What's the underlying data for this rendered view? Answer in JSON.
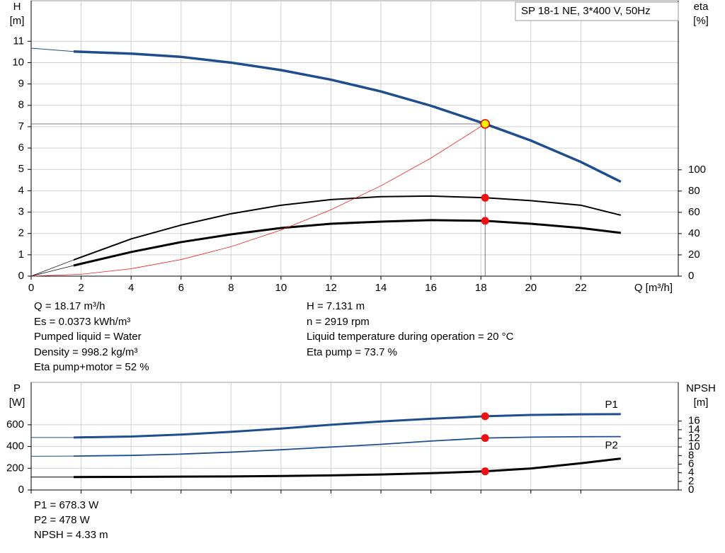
{
  "chart_data": [
    {
      "type": "line",
      "annotation": "SP 18-1 NE, 3*400 V, 50Hz",
      "xlabel": "Q [m³/h]",
      "ylabel": "H",
      "yunit": "[m]",
      "y2label": "eta",
      "y2unit": "[%]",
      "xlim": [
        0,
        25.9
      ],
      "xticks": [
        0,
        2,
        4,
        6,
        8,
        10,
        12,
        14,
        16,
        18,
        20,
        22
      ],
      "show_xtick_labels": true,
      "ylim": [
        0,
        12.9
      ],
      "yticks": [
        0,
        1,
        2,
        3,
        4,
        5,
        6,
        7,
        8,
        9,
        10,
        11
      ],
      "y2lim": [
        0,
        259
      ],
      "y2ticks": [
        0,
        20,
        40,
        60,
        80,
        100
      ],
      "grid": true,
      "series": [
        {
          "color": "#1f4e8c",
          "width": 1,
          "x": [
            0,
            1.7
          ],
          "values": [
            10.68,
            10.52
          ]
        },
        {
          "color": "#1f4e8c",
          "width": 3.5,
          "x": [
            1.7,
            4,
            6,
            8,
            10,
            12,
            14,
            16,
            18.17,
            20,
            22,
            23.6
          ],
          "values": [
            10.52,
            10.42,
            10.27,
            10.0,
            9.65,
            9.2,
            8.65,
            7.98,
            7.131,
            6.35,
            5.35,
            4.42
          ]
        },
        {
          "color": "#000000",
          "width": 0.7,
          "axis": "y2",
          "x": [
            0,
            1.7
          ],
          "values": [
            0,
            15.3
          ]
        },
        {
          "color": "#000000",
          "width": 2,
          "axis": "y2",
          "x": [
            1.7,
            4,
            6,
            8,
            10,
            12,
            14,
            16,
            18.17,
            20,
            22,
            23.6
          ],
          "values": [
            15.3,
            35,
            48,
            58.7,
            66.7,
            72,
            74.7,
            75.3,
            73.7,
            71,
            66.7,
            57.3
          ]
        },
        {
          "color": "#000000",
          "width": 0.7,
          "axis": "y2",
          "x": [
            0,
            1.7
          ],
          "values": [
            0,
            10
          ]
        },
        {
          "color": "#000000",
          "width": 3,
          "axis": "y2",
          "x": [
            1.7,
            4,
            6,
            8,
            10,
            12,
            14,
            16,
            18.17,
            20,
            22,
            23.6
          ],
          "values": [
            10,
            22.7,
            32,
            39.3,
            45.3,
            49.3,
            51.3,
            52.7,
            52,
            49.3,
            45.3,
            40.7
          ]
        },
        {
          "color": "#ee2222",
          "width": 0.8,
          "x": [
            0,
            2,
            4,
            6,
            8,
            10,
            12,
            14,
            16,
            18.17
          ],
          "values": [
            0,
            0.086,
            0.346,
            0.777,
            1.382,
            2.16,
            3.11,
            4.23,
            5.53,
            7.131
          ]
        }
      ],
      "markers": [
        {
          "x": 18.17,
          "value": 7.131,
          "color": "#ffee00",
          "edge": "#e00000",
          "guides": true
        },
        {
          "x": 18.17,
          "value": 73.7,
          "axis": "y2",
          "color": "#ee1111"
        },
        {
          "x": 18.17,
          "value": 52,
          "axis": "y2",
          "color": "#ee1111"
        }
      ]
    },
    {
      "type": "line",
      "ylabel": "P",
      "yunit": "[W]",
      "y2label": "NPSH",
      "y2unit": "[m]",
      "xlim": [
        0,
        25.9
      ],
      "xticks": [
        0,
        2,
        4,
        6,
        8,
        10,
        12,
        14,
        16,
        18,
        20,
        22
      ],
      "show_xtick_labels": false,
      "ylim": [
        0,
        990
      ],
      "yticks": [
        0,
        200,
        400,
        600
      ],
      "y2lim": [
        0,
        25
      ],
      "y2ticks": [
        0,
        2,
        4,
        6,
        8,
        10,
        12,
        14,
        16
      ],
      "grid": true,
      "series": [
        {
          "color": "#1f4e8c",
          "width": 1,
          "x": [
            0,
            1.7
          ],
          "values": [
            483,
            483
          ]
        },
        {
          "name": "P1",
          "label_side": "above",
          "color": "#1f4e8c",
          "width": 3,
          "x": [
            1.7,
            4,
            6,
            8,
            10,
            12,
            14,
            16,
            18.17,
            20,
            22,
            23.6
          ],
          "values": [
            483,
            492,
            510,
            535,
            565,
            600,
            630,
            655,
            678.3,
            690,
            696,
            698
          ]
        },
        {
          "color": "#1f4e8c",
          "width": 1,
          "x": [
            0,
            1.7
          ],
          "values": [
            310,
            312
          ]
        },
        {
          "name": "P2",
          "label_side": "below",
          "color": "#1f4e8c",
          "width": 1.8,
          "x": [
            1.7,
            4,
            6,
            8,
            10,
            12,
            14,
            16,
            18.17,
            20,
            22,
            23.6
          ],
          "values": [
            312,
            318,
            330,
            348,
            370,
            395,
            420,
            450,
            478,
            486,
            490,
            491
          ]
        },
        {
          "color": "#000000",
          "width": 1,
          "axis": "y2",
          "x": [
            0,
            1.7
          ],
          "values": [
            3.0,
            3.0
          ]
        },
        {
          "color": "#000000",
          "width": 3,
          "axis": "y2",
          "x": [
            1.7,
            4,
            6,
            8,
            10,
            12,
            14,
            16,
            18.17,
            20,
            22,
            23.6
          ],
          "values": [
            3.0,
            3.05,
            3.1,
            3.15,
            3.25,
            3.4,
            3.6,
            3.9,
            4.33,
            5.0,
            6.2,
            7.3
          ]
        }
      ],
      "markers": [
        {
          "x": 18.17,
          "value": 678.3,
          "color": "#ee1111"
        },
        {
          "x": 18.17,
          "value": 478,
          "color": "#ee1111"
        },
        {
          "x": 18.17,
          "value": 4.33,
          "axis": "y2",
          "color": "#ee1111"
        }
      ]
    }
  ],
  "results": {
    "left": [
      "Q = 18.17 m³/h",
      "Es = 0.0373 kWh/m³",
      "Pumped liquid = Water",
      "Density = 998.2 kg/m³",
      "Eta pump+motor = 52 %"
    ],
    "right": [
      "H = 7.131 m",
      "n = 2919 rpm",
      "Liquid temperature during operation = 20 °C",
      "Eta pump = 73.7 %"
    ]
  },
  "power_results": [
    "P1 = 678.3 W",
    "P2 = 478 W",
    "NPSH = 4.33 m"
  ]
}
